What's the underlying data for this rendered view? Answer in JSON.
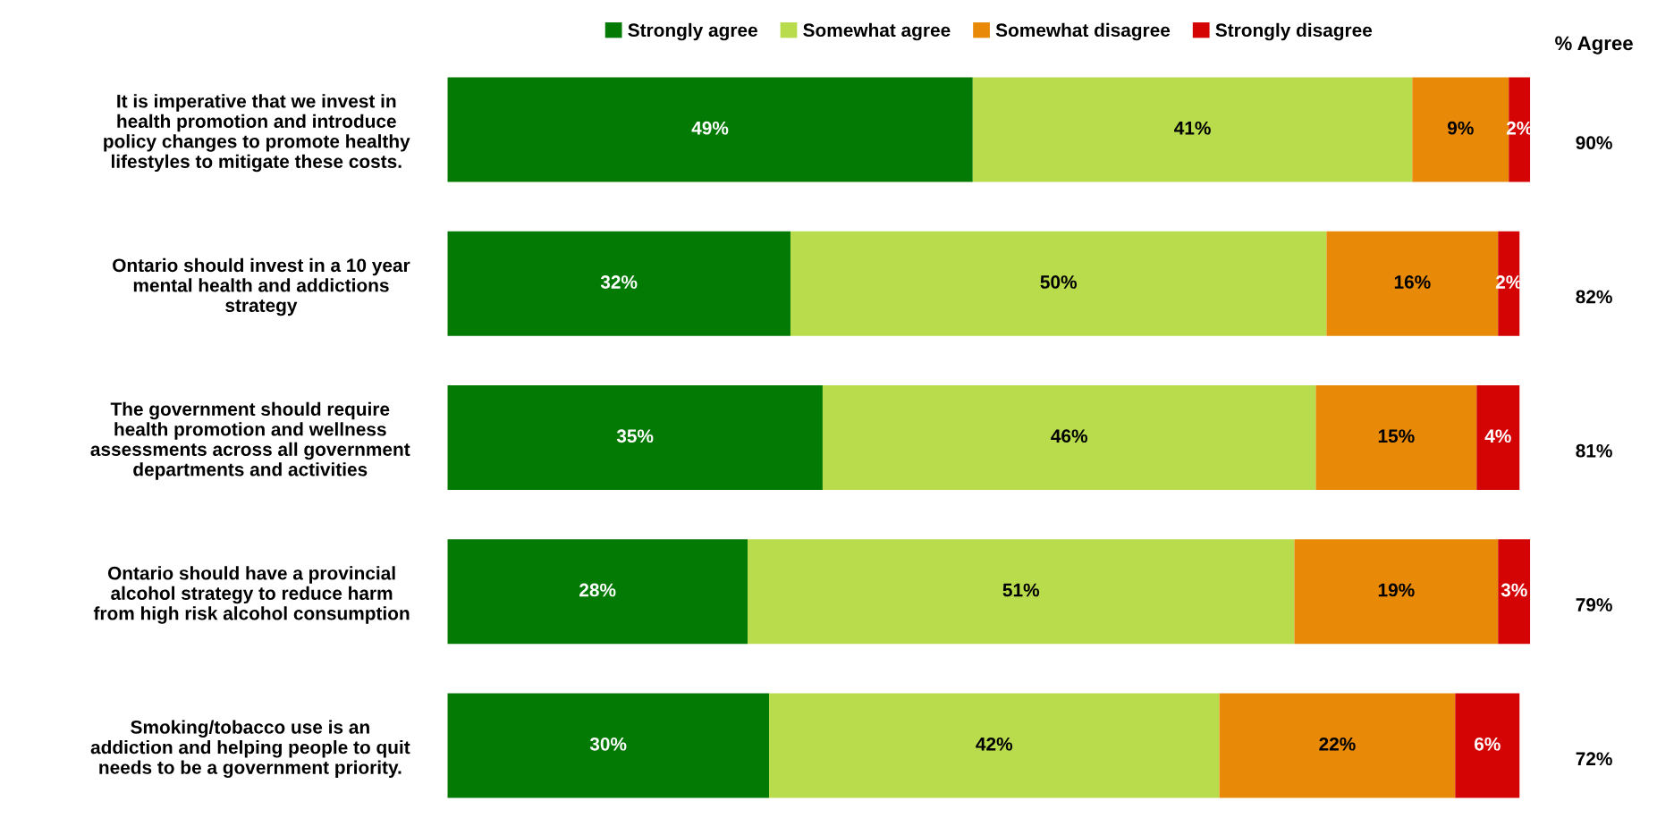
{
  "chart_data": {
    "type": "bar",
    "orientation": "horizontal",
    "stacked": true,
    "legend": "top",
    "grid": false,
    "categories": [
      "It is imperative that we invest in\nhealth promotion and introduce\npolicy changes to promote healthy\nlifestyles to mitigate these costs.",
      "Ontario should invest in a 10 year\nmental health and addictions\nstrategy",
      "The government should require\nhealth promotion and wellness\nassessments across all government\ndepartments and activities",
      "Ontario should have a provincial\nalcohol strategy to reduce harm\nfrom high risk alcohol consumption",
      "Smoking/tobacco use is an\naddiction and helping people to quit\nneeds to be a government priority."
    ],
    "series": [
      {
        "name": "Strongly agree",
        "color": "#037a03",
        "values": [
          49,
          32,
          35,
          28,
          30
        ],
        "value_labels": [
          "49%",
          "32%",
          "35%",
          "28%",
          "30%"
        ]
      },
      {
        "name": "Somewhat agree",
        "color": "#b8dc4c",
        "values": [
          41,
          50,
          46,
          51,
          42
        ],
        "value_labels": [
          "41%",
          "50%",
          "46%",
          "51%",
          "42%"
        ]
      },
      {
        "name": "Somewhat disagree",
        "color": "#e88a08",
        "values": [
          9,
          16,
          15,
          19,
          22
        ],
        "value_labels": [
          "9%",
          "16%",
          "15%",
          "19%",
          "22%"
        ]
      },
      {
        "name": "Strongly disagree",
        "color": "#d40404",
        "values": [
          2,
          2,
          4,
          3,
          6
        ],
        "value_labels": [
          "2%",
          "2%",
          "4%",
          "3%",
          "6%"
        ]
      }
    ],
    "annotations": [
      "% Agree",
      "90%",
      "82%",
      "81%",
      "79%",
      "72%"
    ]
  }
}
